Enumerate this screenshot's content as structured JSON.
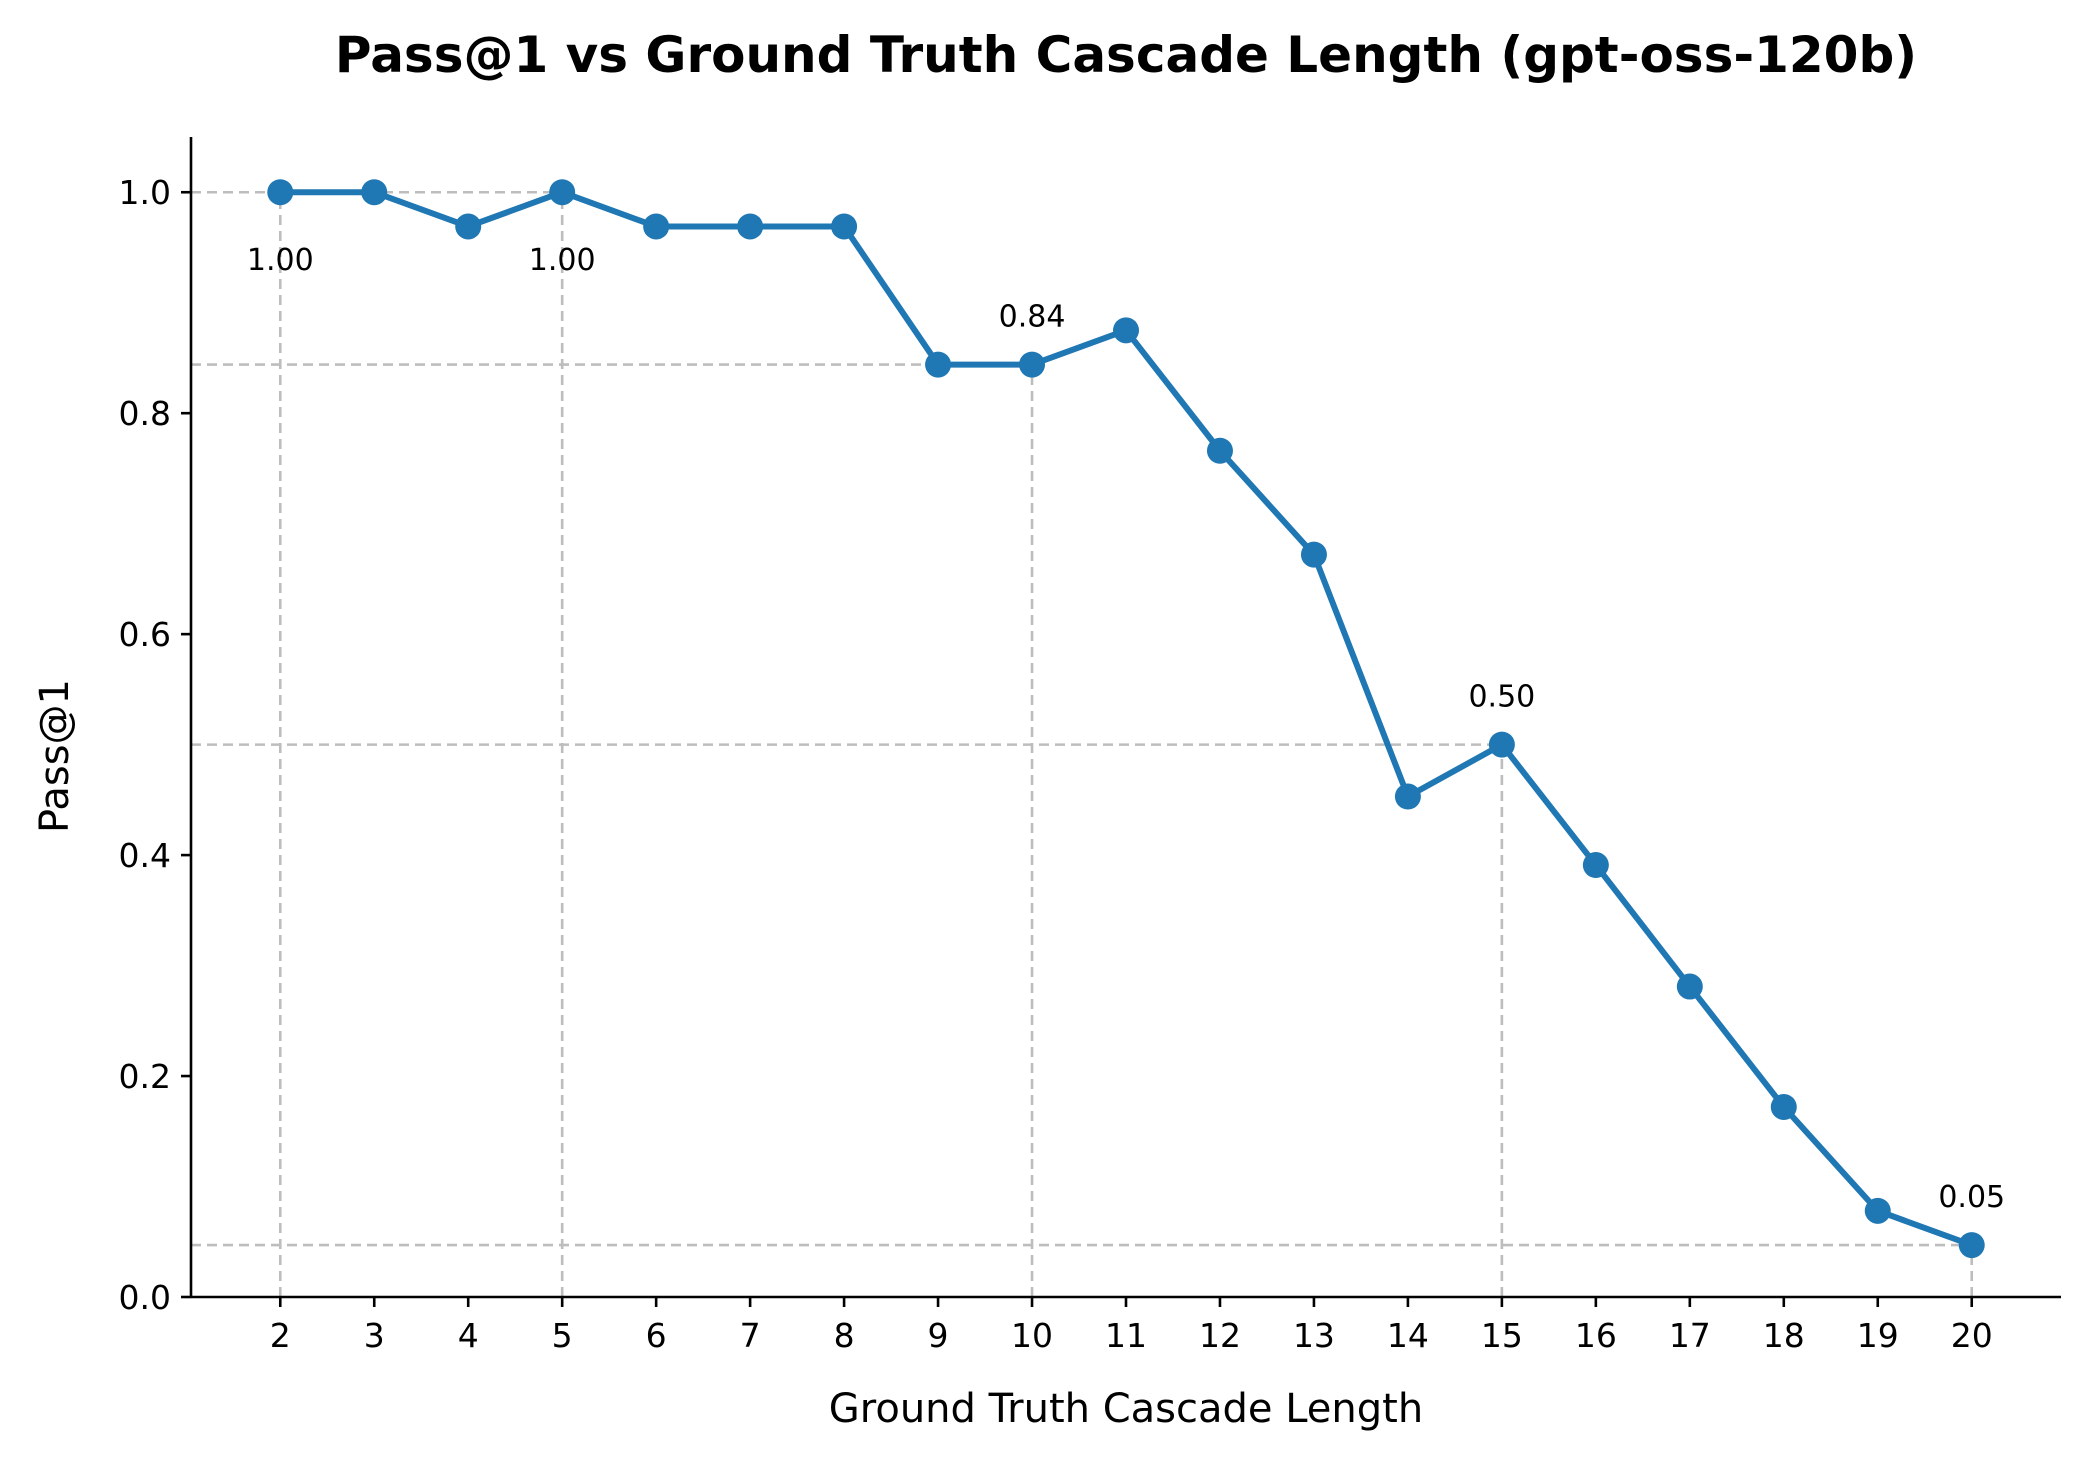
{
  "chart_data": {
    "type": "line",
    "title": "Pass@1 vs Ground Truth Cascade Length (gpt-oss-120b)",
    "xlabel": "Ground Truth Cascade Length",
    "ylabel": "Pass@1",
    "x": [
      2,
      3,
      4,
      5,
      6,
      7,
      8,
      9,
      10,
      11,
      12,
      13,
      14,
      15,
      16,
      17,
      18,
      19,
      20
    ],
    "series": [
      {
        "name": "gpt-oss-120b",
        "color": "#1f77b4",
        "values": [
          1.0,
          1.0,
          0.969,
          1.0,
          0.969,
          0.969,
          0.969,
          0.844,
          0.844,
          0.875,
          0.766,
          0.672,
          0.453,
          0.5,
          0.391,
          0.281,
          0.172,
          0.078,
          0.047
        ]
      }
    ],
    "xlim": [
      1.05,
      20.95
    ],
    "ylim": [
      0.0,
      1.05
    ],
    "xticks": [
      "2",
      "3",
      "4",
      "5",
      "6",
      "7",
      "8",
      "9",
      "10",
      "11",
      "12",
      "13",
      "14",
      "15",
      "16",
      "17",
      "18",
      "19",
      "20"
    ],
    "yticks": [
      "0.0",
      "0.2",
      "0.4",
      "0.6",
      "0.8",
      "1.0"
    ],
    "annotations": [
      {
        "x": 2,
        "y": 1.0,
        "text": "1.00",
        "placement": "below"
      },
      {
        "x": 5,
        "y": 1.0,
        "text": "1.00",
        "placement": "below"
      },
      {
        "x": 10,
        "y": 0.844,
        "text": "0.84",
        "placement": "above"
      },
      {
        "x": 15,
        "y": 0.5,
        "text": "0.50",
        "placement": "above"
      },
      {
        "x": 20,
        "y": 0.047,
        "text": "0.05",
        "placement": "above"
      }
    ],
    "grid": false,
    "guides_color": "#bdbdbd"
  }
}
